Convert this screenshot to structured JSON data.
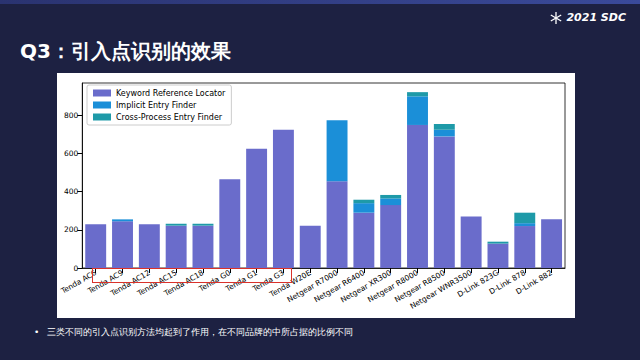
{
  "chart_data": {
    "type": "bar",
    "title": "Q3：引入点识别的效果",
    "annotations": [
      "三类不同的引入点识别方法均起到了作用，在不同品牌的中所占据的比例不同",
      "2021 SDC"
    ],
    "categories": [
      "Tenda AC6",
      "Tenda AC9",
      "Tenda AC12",
      "Tenda AC15",
      "Tenda AC18",
      "Tenda G0",
      "Tenda G1",
      "Tenda G3",
      "Tenda W20E",
      "Netgear R7000",
      "Netgear R6400",
      "Netgear XR300",
      "Netgear R8000",
      "Netgear R8500",
      "Netgear WNR3500",
      "D-Link 823G",
      "D-Link 878",
      "D-Link 882"
    ],
    "series": [
      {
        "name": "Keyword Reference Locator",
        "color": "#6a6ccb",
        "values": [
          230,
          245,
          230,
          222,
          222,
          465,
          625,
          725,
          222,
          455,
          290,
          330,
          750,
          690,
          270,
          128,
          220,
          255
        ]
      },
      {
        "name": "Implicit Entry Finder",
        "color": "#1b8fd8",
        "values": [
          0,
          10,
          0,
          0,
          0,
          0,
          0,
          0,
          0,
          320,
          50,
          35,
          150,
          35,
          0,
          0,
          15,
          0
        ]
      },
      {
        "name": "Cross-Process Entry Finder",
        "color": "#1e9aa8",
        "values": [
          0,
          0,
          0,
          10,
          10,
          0,
          0,
          0,
          0,
          0,
          18,
          18,
          22,
          30,
          0,
          10,
          55,
          0
        ]
      }
    ],
    "ylim": [
      0,
      970
    ],
    "yticks": [
      0,
      200,
      400,
      600,
      800
    ],
    "stacked": true,
    "grid": false,
    "legend": "upper left"
  }
}
